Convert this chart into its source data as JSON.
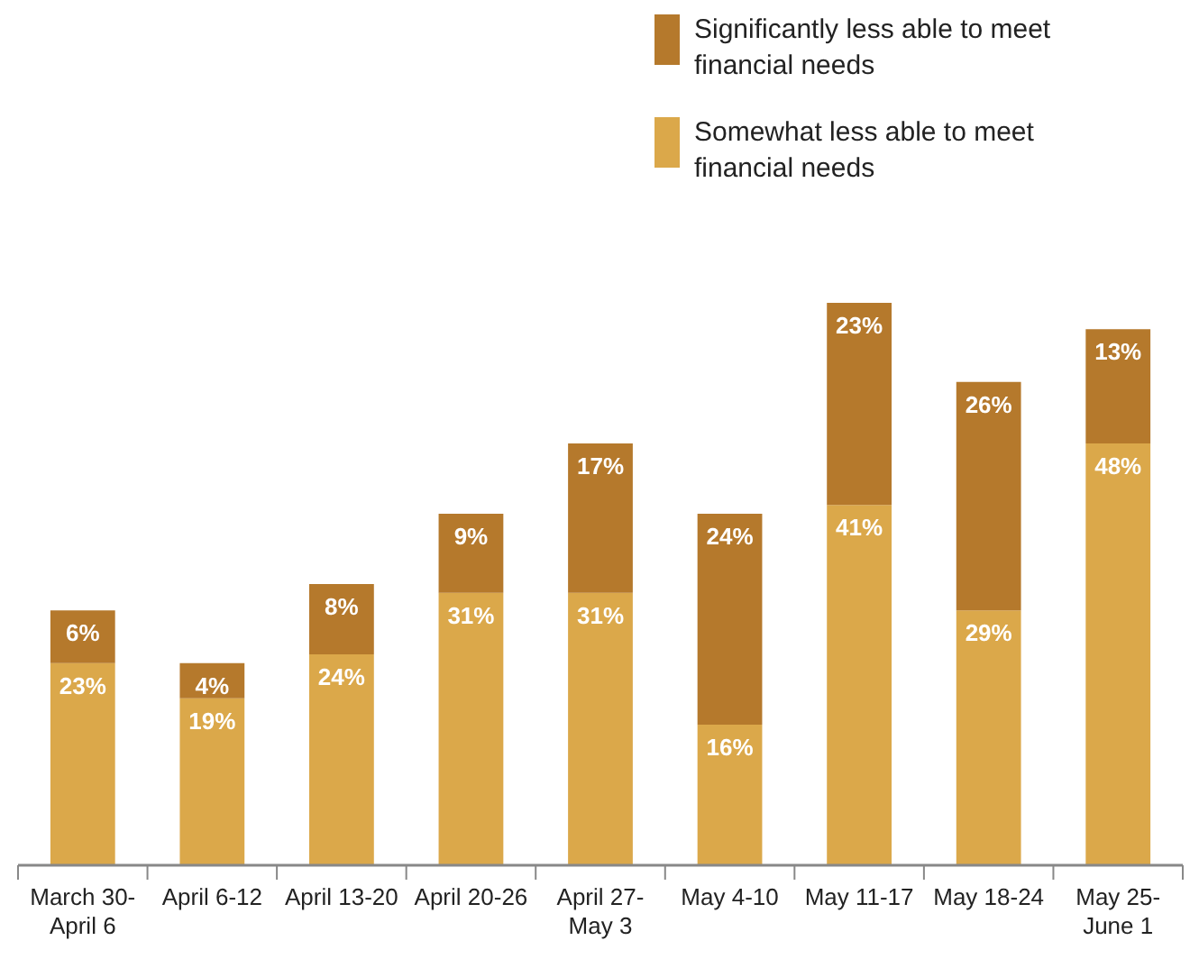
{
  "chart_data": {
    "type": "bar",
    "stacked": true,
    "legend": "top right",
    "categories": [
      "March 30-April 6",
      "April 6-12",
      "April 13-20",
      "April 20-26",
      "April 27-May 3",
      "May 4-10",
      "May 11-17",
      "May 18-24",
      "May 25-June 1"
    ],
    "series": [
      {
        "name": "Somewhat less able to meet financial needs",
        "color": "#dba84a",
        "values": [
          23,
          19,
          24,
          31,
          31,
          16,
          41,
          29,
          48
        ],
        "value_labels": [
          "23%",
          "19%",
          "24%",
          "31%",
          "31%",
          "16%",
          "41%",
          "29%",
          "48%"
        ]
      },
      {
        "name": "Significantly less able to meet financial needs",
        "color": "#b5792c",
        "values": [
          6,
          4,
          8,
          9,
          17,
          24,
          23,
          26,
          13
        ],
        "value_labels": [
          "6%",
          "4%",
          "8%",
          "9%",
          "17%",
          "24%",
          "23%",
          "26%",
          "13%"
        ]
      }
    ]
  }
}
